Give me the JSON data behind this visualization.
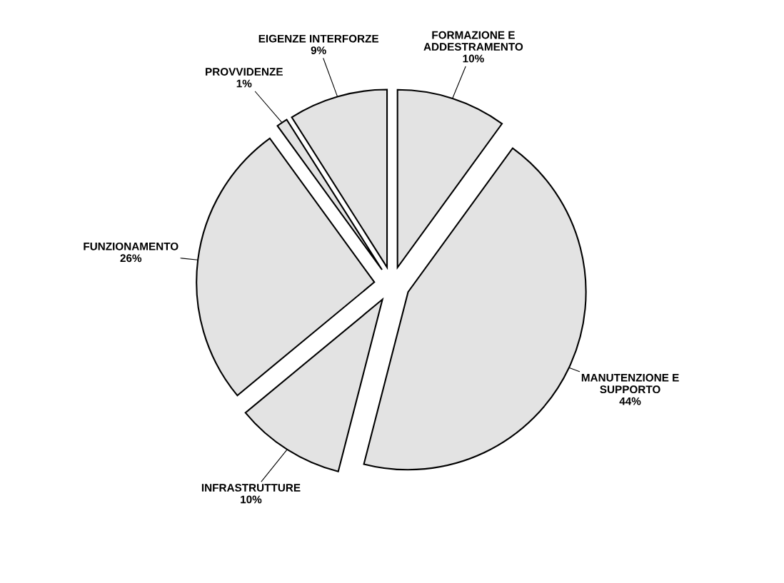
{
  "chart_data": {
    "type": "pie",
    "categories": [
      "FORMAZIONE E\nADDESTRAMENTO",
      "MANUTENZIONE E\nSUPPORTO",
      "INFRASTRUTTURE",
      "FUNZIONAMENTO",
      "PROVVIDENZE",
      "EIGENZE INTERFORZE"
    ],
    "values": [
      10,
      44,
      10,
      26,
      1,
      9
    ],
    "value_labels": [
      "10%",
      "44%",
      "10%",
      "26%",
      "1%",
      "9%"
    ],
    "colors": [
      "#e3e3e3",
      "#e3e3e3",
      "#e3e3e3",
      "#e3e3e3",
      "#e3e3e3",
      "#e3e3e3"
    ]
  }
}
